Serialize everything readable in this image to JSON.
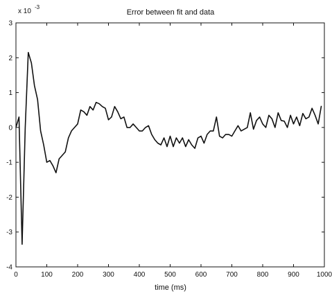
{
  "chart_data": {
    "type": "line",
    "title": "Error between fit and data",
    "xlabel": "time (ms)",
    "ylabel": "",
    "scale_label": "x 10",
    "scale_exponent": "-3",
    "xlim": [
      0,
      1000
    ],
    "ylim": [
      -4,
      3
    ],
    "x_ticks": [
      0,
      100,
      200,
      300,
      400,
      500,
      600,
      700,
      800,
      900,
      1000
    ],
    "y_ticks": [
      3,
      2,
      1,
      0,
      -1,
      -2,
      -3,
      -4
    ],
    "grid": false,
    "line_color": "#111111",
    "series": [
      {
        "x": [
          0,
          10,
          20,
          30,
          40,
          50,
          60,
          70,
          80,
          90,
          100,
          110,
          120,
          130,
          140,
          150,
          160,
          170,
          180,
          190,
          200,
          210,
          220,
          230,
          240,
          250,
          260,
          270,
          280,
          290,
          300,
          310,
          320,
          330,
          340,
          350,
          360,
          370,
          380,
          390,
          400,
          410,
          420,
          430,
          440,
          450,
          460,
          470,
          480,
          490,
          500,
          510,
          520,
          530,
          540,
          550,
          560,
          570,
          580,
          590,
          600,
          610,
          620,
          630,
          640,
          650,
          660,
          670,
          680,
          690,
          700,
          710,
          720,
          730,
          740,
          750,
          760,
          770,
          780,
          790,
          800,
          810,
          820,
          830,
          840,
          850,
          860,
          870,
          880,
          890,
          900,
          910,
          920,
          930,
          940,
          950,
          960,
          970,
          980,
          990
        ],
        "y": [
          0.0,
          0.3,
          -3.35,
          0.0,
          2.15,
          1.85,
          1.2,
          0.8,
          -0.1,
          -0.5,
          -1.0,
          -0.95,
          -1.1,
          -1.3,
          -0.9,
          -0.8,
          -0.7,
          -0.3,
          -0.1,
          0.0,
          0.1,
          0.5,
          0.45,
          0.35,
          0.6,
          0.5,
          0.72,
          0.68,
          0.6,
          0.55,
          0.22,
          0.3,
          0.6,
          0.45,
          0.25,
          0.3,
          0.0,
          0.0,
          0.1,
          0.0,
          -0.1,
          -0.1,
          0.0,
          0.05,
          -0.2,
          -0.35,
          -0.45,
          -0.5,
          -0.3,
          -0.55,
          -0.25,
          -0.55,
          -0.3,
          -0.45,
          -0.3,
          -0.55,
          -0.35,
          -0.5,
          -0.6,
          -0.3,
          -0.25,
          -0.45,
          -0.2,
          -0.1,
          -0.1,
          0.3,
          -0.25,
          -0.3,
          -0.2,
          -0.2,
          -0.25,
          -0.1,
          0.05,
          -0.1,
          -0.05,
          0.0,
          0.42,
          -0.05,
          0.2,
          0.3,
          0.1,
          0.0,
          0.35,
          0.25,
          0.0,
          0.42,
          0.2,
          0.18,
          0.0,
          0.35,
          0.1,
          0.3,
          0.05,
          0.4,
          0.25,
          0.3,
          0.55,
          0.35,
          0.1,
          0.62
        ]
      }
    ]
  }
}
